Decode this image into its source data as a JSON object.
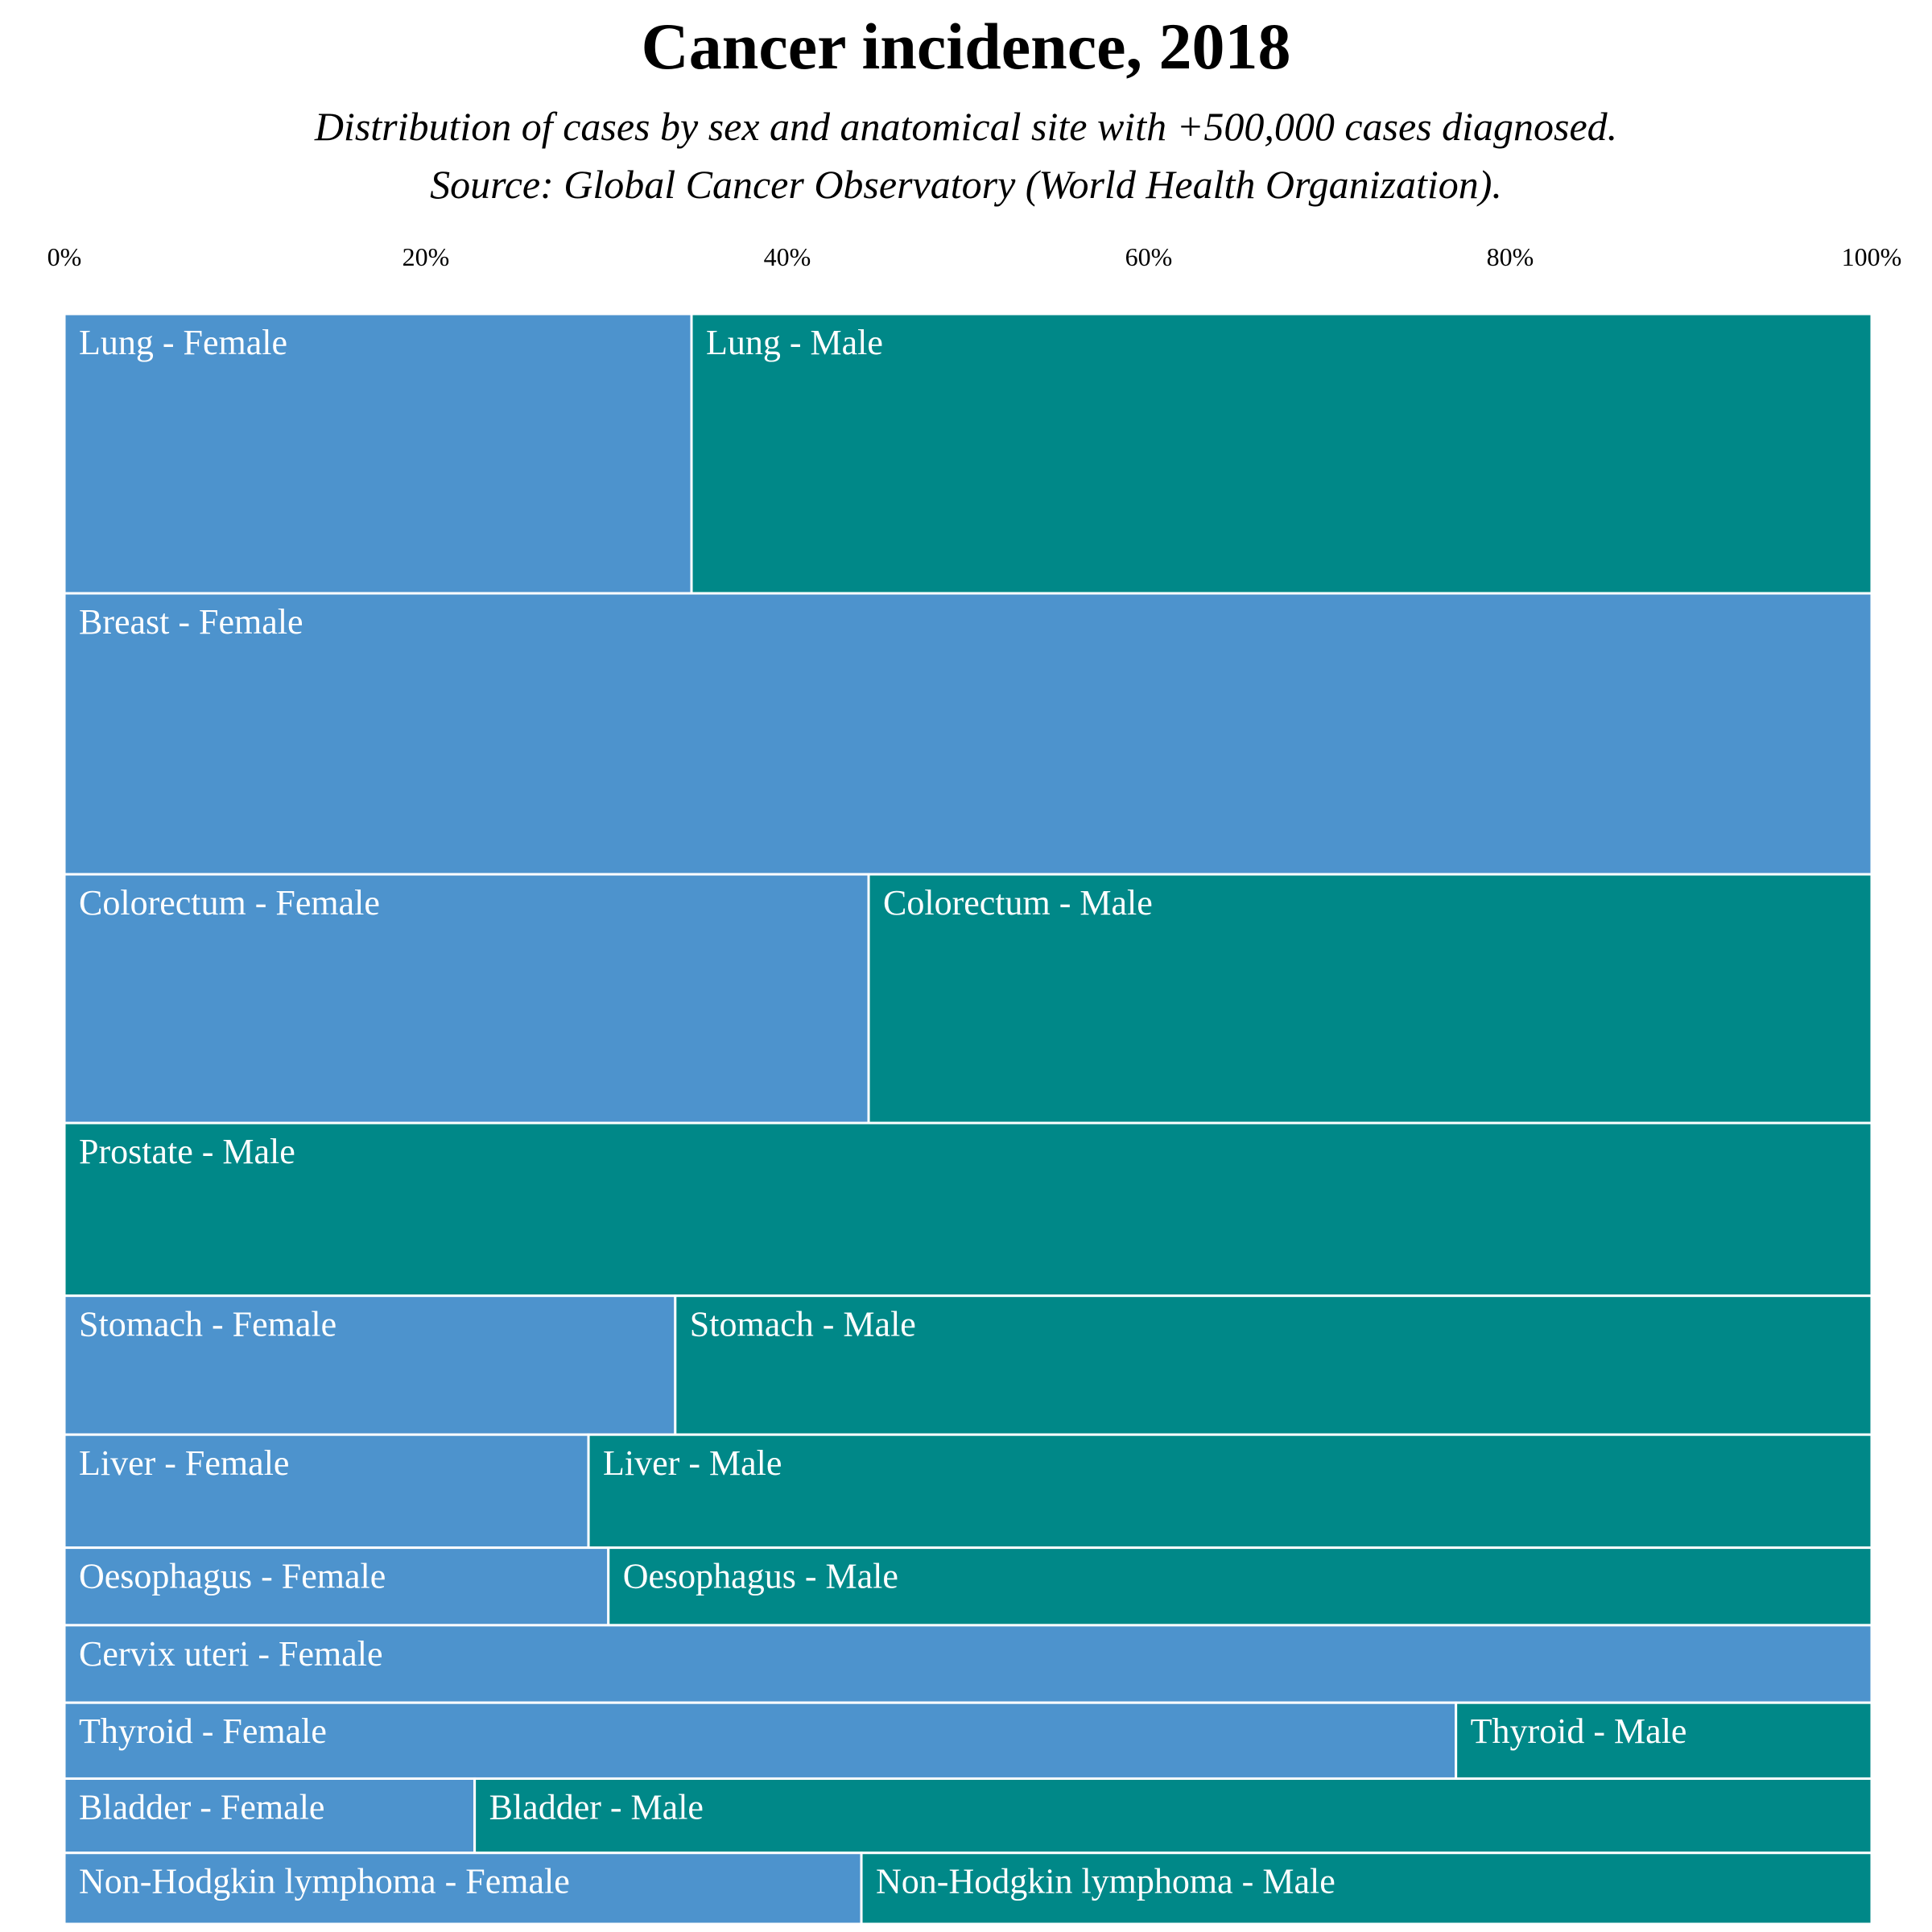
{
  "chart_data": {
    "type": "mosaic",
    "title": "Cancer incidence, 2018",
    "subtitle": [
      "Distribution of cases by sex and anatomical site with +500,000 cases diagnosed.",
      "Source: Global Cancer Observatory (World Health Organization)."
    ],
    "x_axis": {
      "ticks": [
        "0%",
        "20%",
        "40%",
        "60%",
        "80%",
        "100%"
      ],
      "range": [
        0,
        100
      ],
      "position": "top"
    },
    "colors": {
      "Female": "#4d93cd",
      "Male": "#008888"
    },
    "series": [
      "Female",
      "Male"
    ],
    "rows": [
      {
        "site": "Lung",
        "row_share": 17.3,
        "female_pct": 34.7,
        "labels": {
          "Female": "Lung - Female",
          "Male": "Lung - Male"
        }
      },
      {
        "site": "Breast",
        "row_share": 17.4,
        "female_pct": 100,
        "labels": {
          "Female": "Breast - Female"
        }
      },
      {
        "site": "Colorectum",
        "row_share": 15.4,
        "female_pct": 44.5,
        "labels": {
          "Female": "Colorectum - Female",
          "Male": "Colorectum - Male"
        }
      },
      {
        "site": "Prostate",
        "row_share": 10.7,
        "female_pct": 0,
        "labels": {
          "Male": "Prostate - Male"
        }
      },
      {
        "site": "Stomach",
        "row_share": 8.6,
        "female_pct": 33.8,
        "labels": {
          "Female": "Stomach - Female",
          "Male": "Stomach - Male"
        }
      },
      {
        "site": "Liver",
        "row_share": 7.0,
        "female_pct": 29.0,
        "labels": {
          "Female": "Liver - Female",
          "Male": "Liver - Male"
        }
      },
      {
        "site": "Oesophagus",
        "row_share": 4.8,
        "female_pct": 30.1,
        "labels": {
          "Female": "Oesophagus - Female",
          "Male": "Oesophagus - Male"
        }
      },
      {
        "site": "Cervix uteri",
        "row_share": 4.8,
        "female_pct": 100,
        "labels": {
          "Female": "Cervix uteri - Female"
        }
      },
      {
        "site": "Thyroid",
        "row_share": 4.7,
        "female_pct": 77.0,
        "labels": {
          "Female": "Thyroid - Female",
          "Male": "Thyroid - Male"
        }
      },
      {
        "site": "Bladder",
        "row_share": 4.6,
        "female_pct": 22.7,
        "labels": {
          "Female": "Bladder - Female",
          "Male": "Bladder - Male"
        }
      },
      {
        "site": "Non-Hodgkin lymphoma",
        "row_share": 4.4,
        "female_pct": 44.1,
        "labels": {
          "Female": "Non-Hodgkin lymphoma - Female",
          "Male": "Non-Hodgkin lymphoma - Male"
        }
      }
    ]
  }
}
